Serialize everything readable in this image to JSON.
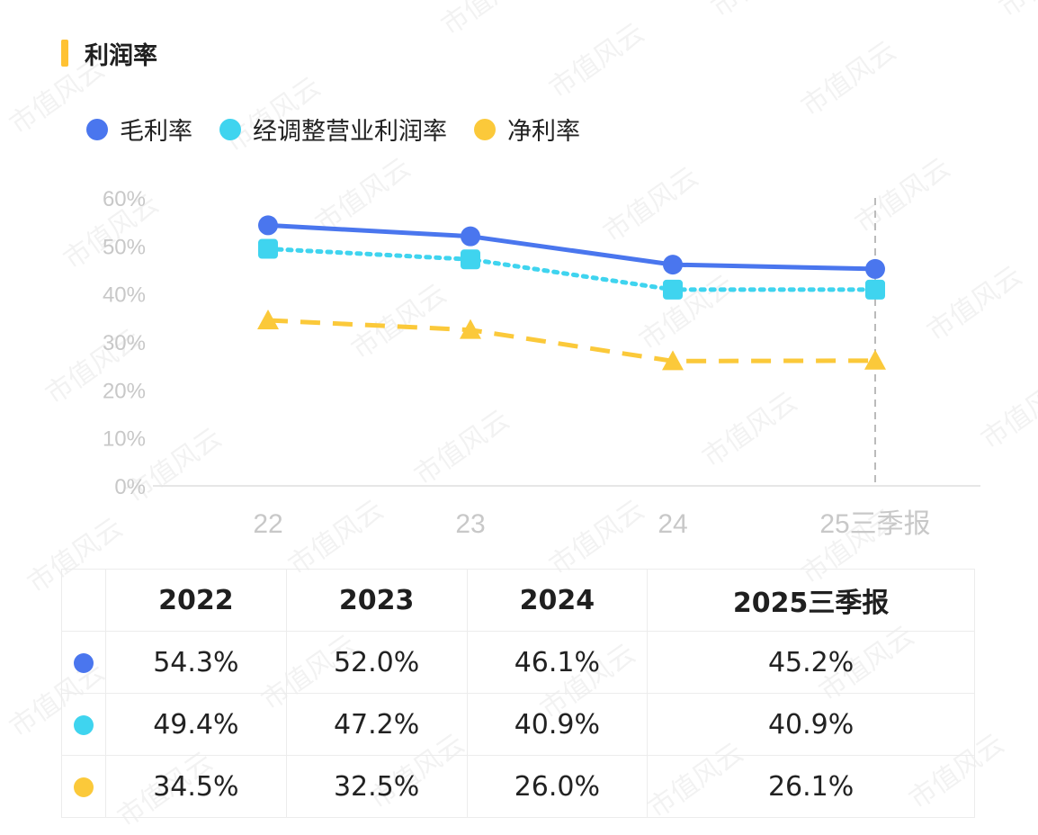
{
  "page": {
    "title": "利润率",
    "watermark": "市值风云",
    "accent_color": "#ffc233"
  },
  "legend": [
    {
      "label": "毛利率",
      "color": "#4a76ee"
    },
    {
      "label": "经调整营业利润率",
      "color": "#3fd4ef"
    },
    {
      "label": "净利率",
      "color": "#fbc93a"
    }
  ],
  "chart_data": {
    "type": "line",
    "categories": [
      "22",
      "23",
      "24",
      "25三季报"
    ],
    "y_tick_labels": [
      "0%",
      "10%",
      "20%",
      "30%",
      "40%",
      "50%",
      "60%"
    ],
    "ylim": [
      0,
      60
    ],
    "unit": "%",
    "grid": false,
    "vertical_marker_category": "25三季报",
    "series": [
      {
        "name": "毛利率",
        "values": [
          54.3,
          52.0,
          46.1,
          45.2
        ],
        "color": "#4a76ee",
        "line": "solid",
        "marker": "circle"
      },
      {
        "name": "经调整营业利润率",
        "values": [
          49.4,
          47.2,
          40.9,
          40.9
        ],
        "color": "#3fd4ef",
        "line": "dotted",
        "marker": "square"
      },
      {
        "name": "净利率",
        "values": [
          34.5,
          32.5,
          26.0,
          26.1
        ],
        "color": "#fbc93a",
        "line": "dashed",
        "marker": "triangle"
      }
    ]
  },
  "table": {
    "headers": [
      "2022",
      "2023",
      "2024",
      "2025三季报"
    ],
    "rows": [
      {
        "color": "#4a76ee",
        "cells": [
          "54.3%",
          "52.0%",
          "46.1%",
          "45.2%"
        ]
      },
      {
        "color": "#3fd4ef",
        "cells": [
          "49.4%",
          "47.2%",
          "40.9%",
          "40.9%"
        ]
      },
      {
        "color": "#fbc93a",
        "cells": [
          "34.5%",
          "32.5%",
          "26.0%",
          "26.1%"
        ]
      }
    ]
  }
}
